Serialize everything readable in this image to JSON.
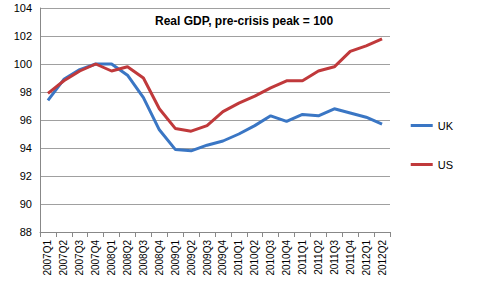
{
  "chart_data": {
    "type": "line",
    "title": "Real GDP, pre-crisis peak = 100",
    "categories": [
      "2007Q1",
      "2007Q2",
      "2007Q3",
      "2007Q4",
      "2008Q1",
      "2008Q2",
      "2008Q3",
      "2008Q4",
      "2009Q1",
      "2009Q2",
      "2009Q3",
      "2009Q4",
      "2010Q1",
      "2010Q2",
      "2010Q3",
      "2010Q4",
      "2011Q1",
      "2011Q2",
      "2011Q3",
      "2011Q4",
      "2012Q1",
      "2012Q2"
    ],
    "series": [
      {
        "name": "UK",
        "color": "#3a76c4",
        "values": [
          97.4,
          98.9,
          99.6,
          100.0,
          100.0,
          99.2,
          97.6,
          95.3,
          93.9,
          93.8,
          94.2,
          94.5,
          95.0,
          95.6,
          96.3,
          95.9,
          96.4,
          96.3,
          96.8,
          96.5,
          96.2,
          95.7
        ]
      },
      {
        "name": "US",
        "color": "#c0393b",
        "values": [
          97.9,
          98.8,
          99.5,
          100.0,
          99.5,
          99.8,
          99.0,
          96.8,
          95.4,
          95.2,
          95.6,
          96.6,
          97.2,
          97.7,
          98.3,
          98.8,
          98.8,
          99.5,
          99.8,
          100.9,
          101.3,
          101.8
        ]
      }
    ],
    "ylim": [
      88,
      104
    ],
    "yticks": [
      88,
      90,
      92,
      94,
      96,
      98,
      100,
      102,
      104
    ],
    "grid": true,
    "legend": "right"
  }
}
